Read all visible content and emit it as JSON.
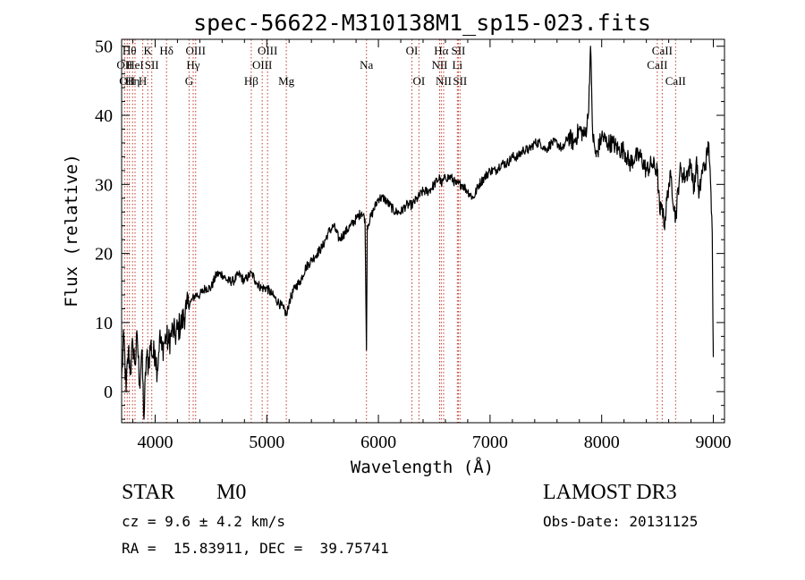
{
  "chart_data": {
    "type": "line",
    "title": "spec-56622-M310138M1_sp15-023.fits",
    "xlabel": "Wavelength (Å)",
    "ylabel": "Flux (relative)",
    "xlim": [
      3700,
      9100
    ],
    "ylim": [
      -4.5,
      51
    ],
    "xticks": [
      4000,
      5000,
      6000,
      7000,
      8000,
      9000
    ],
    "yticks": [
      0,
      10,
      20,
      30,
      40,
      50
    ],
    "grid": false,
    "series": [
      {
        "name": "flux",
        "x": [
          3700,
          3720,
          3740,
          3760,
          3780,
          3800,
          3820,
          3840,
          3860,
          3880,
          3900,
          3920,
          3940,
          3960,
          3980,
          4000,
          4020,
          4040,
          4060,
          4080,
          4100,
          4120,
          4140,
          4160,
          4180,
          4200,
          4240,
          4280,
          4320,
          4360,
          4400,
          4450,
          4500,
          4550,
          4600,
          4650,
          4700,
          4750,
          4800,
          4850,
          4870,
          4900,
          4950,
          5000,
          5050,
          5100,
          5150,
          5180,
          5200,
          5250,
          5300,
          5350,
          5400,
          5450,
          5500,
          5550,
          5600,
          5650,
          5700,
          5750,
          5800,
          5850,
          5880,
          5893,
          5900,
          5950,
          6000,
          6050,
          6100,
          6150,
          6200,
          6250,
          6300,
          6350,
          6400,
          6450,
          6500,
          6550,
          6563,
          6600,
          6650,
          6700,
          6750,
          6800,
          6850,
          6900,
          6950,
          7000,
          7050,
          7100,
          7150,
          7200,
          7250,
          7300,
          7350,
          7400,
          7450,
          7500,
          7550,
          7600,
          7650,
          7700,
          7750,
          7800,
          7850,
          7880,
          7900,
          7920,
          7950,
          8000,
          8050,
          8100,
          8150,
          8200,
          8250,
          8300,
          8350,
          8400,
          8450,
          8498,
          8520,
          8542,
          8560,
          8600,
          8620,
          8662,
          8700,
          8750,
          8800,
          8830,
          8850,
          8870,
          8900,
          8930,
          8960,
          8990,
          9000
        ],
        "values": [
          2,
          8,
          0,
          6,
          3,
          7,
          4,
          8,
          1,
          6,
          -4,
          5,
          4,
          7,
          5,
          6,
          3,
          8,
          6,
          7,
          8,
          7,
          8,
          9,
          8,
          9,
          10,
          12,
          13,
          14,
          14,
          15,
          15,
          17,
          17,
          16,
          16,
          17,
          16,
          17,
          17,
          16,
          15,
          15,
          14,
          13,
          12,
          11,
          13,
          15,
          16,
          18,
          19,
          20,
          21,
          23,
          24,
          22,
          23,
          24,
          25,
          26,
          25,
          6,
          24,
          26,
          28,
          28,
          27,
          26,
          26,
          27,
          27,
          28,
          29,
          29,
          30,
          31,
          30,
          31,
          31,
          30,
          30,
          29,
          28,
          30,
          31,
          32,
          32,
          33,
          33,
          34,
          34,
          35,
          35,
          36,
          36,
          35,
          36,
          36,
          35,
          37,
          36,
          38,
          37,
          40,
          50,
          37,
          34,
          37,
          36,
          36,
          35,
          35,
          33,
          34,
          34,
          32,
          33,
          32,
          26,
          27,
          24,
          30,
          31,
          25,
          32,
          31,
          33,
          29,
          34,
          28,
          32,
          33,
          36,
          23,
          5
        ]
      }
    ],
    "lines": [
      {
        "wl": 3727,
        "label": "OII",
        "row": 2
      },
      {
        "wl": 3750,
        "label": "OII",
        "row": 3
      },
      {
        "wl": 3770,
        "label": "Hθ",
        "row": 1
      },
      {
        "wl": 3798,
        "label": "Hη",
        "row": 3
      },
      {
        "wl": 3820,
        "label": "HeI",
        "row": 2
      },
      {
        "wl": 3889,
        "label": "H",
        "row": 3
      },
      {
        "wl": 3934,
        "label": "K",
        "row": 1
      },
      {
        "wl": 3970,
        "label": "SII",
        "row": 2
      },
      {
        "wl": 4102,
        "label": "Hδ",
        "row": 1
      },
      {
        "wl": 4304,
        "label": "G",
        "row": 3
      },
      {
        "wl": 4341,
        "label": "Hγ",
        "row": 2
      },
      {
        "wl": 4363,
        "label": "OIII",
        "row": 1
      },
      {
        "wl": 4861,
        "label": "Hβ",
        "row": 3
      },
      {
        "wl": 4959,
        "label": "OIII",
        "row": 2
      },
      {
        "wl": 5007,
        "label": "OIII",
        "row": 1
      },
      {
        "wl": 5175,
        "label": "Mg",
        "row": 3
      },
      {
        "wl": 5893,
        "label": "Na",
        "row": 2
      },
      {
        "wl": 6300,
        "label": "OI",
        "row": 1
      },
      {
        "wl": 6363,
        "label": "OI",
        "row": 3
      },
      {
        "wl": 6548,
        "label": "NII",
        "row": 2
      },
      {
        "wl": 6563,
        "label": "Hα",
        "row": 1
      },
      {
        "wl": 6584,
        "label": "NII",
        "row": 3
      },
      {
        "wl": 6707,
        "label": "Li",
        "row": 2
      },
      {
        "wl": 6716,
        "label": "SII",
        "row": 1
      },
      {
        "wl": 6731,
        "label": "SII",
        "row": 3
      },
      {
        "wl": 8498,
        "label": "CaII",
        "row": 2
      },
      {
        "wl": 8542,
        "label": "CaII",
        "row": 1
      },
      {
        "wl": 8662,
        "label": "CaII",
        "row": 3
      }
    ]
  },
  "info": {
    "class": "STAR",
    "subclass": "M0",
    "survey": "LAMOST DR3",
    "cz": "cz = 9.6 ± 4.2 km/s",
    "obs_date": "Obs-Date: 20131125",
    "radec": "RA =  15.83911, DEC =  39.75741"
  }
}
